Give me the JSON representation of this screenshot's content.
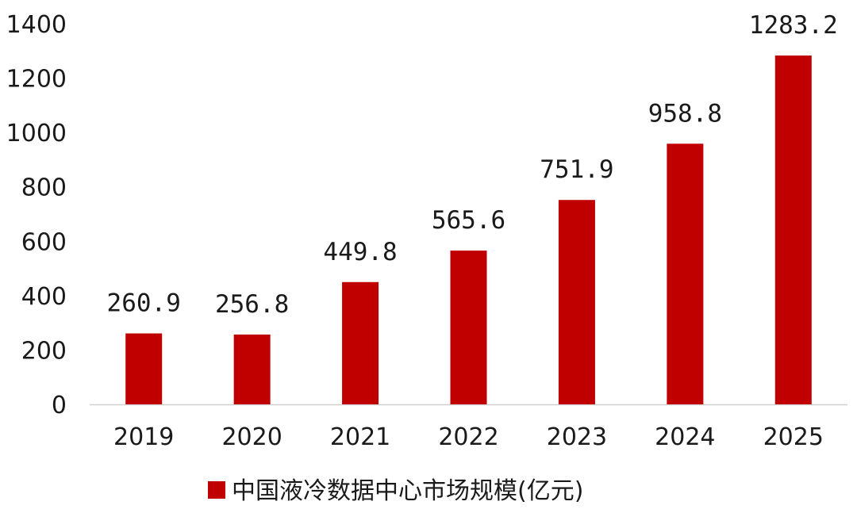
{
  "chart_data": {
    "type": "bar",
    "categories": [
      "2019",
      "2020",
      "2021",
      "2022",
      "2023",
      "2024",
      "2025"
    ],
    "series": [
      {
        "name": "中国液冷数据中心市场规模(亿元)",
        "values": [
          260.9,
          256.8,
          449.8,
          565.6,
          751.9,
          958.8,
          1283.2
        ],
        "labels": [
          "260.9",
          "256.8",
          "449.8",
          "565.6",
          "751.9",
          "958.8",
          "1283.2"
        ]
      }
    ],
    "ylim": [
      0,
      1400
    ],
    "yticks": [
      "0",
      "200",
      "400",
      "600",
      "800",
      "1000",
      "1200",
      "1400"
    ],
    "ytick_values": [
      0,
      200,
      400,
      600,
      800,
      1000,
      1200,
      1400
    ],
    "grid": false,
    "legend_position": "bottom",
    "bar_color": "#c00000"
  }
}
